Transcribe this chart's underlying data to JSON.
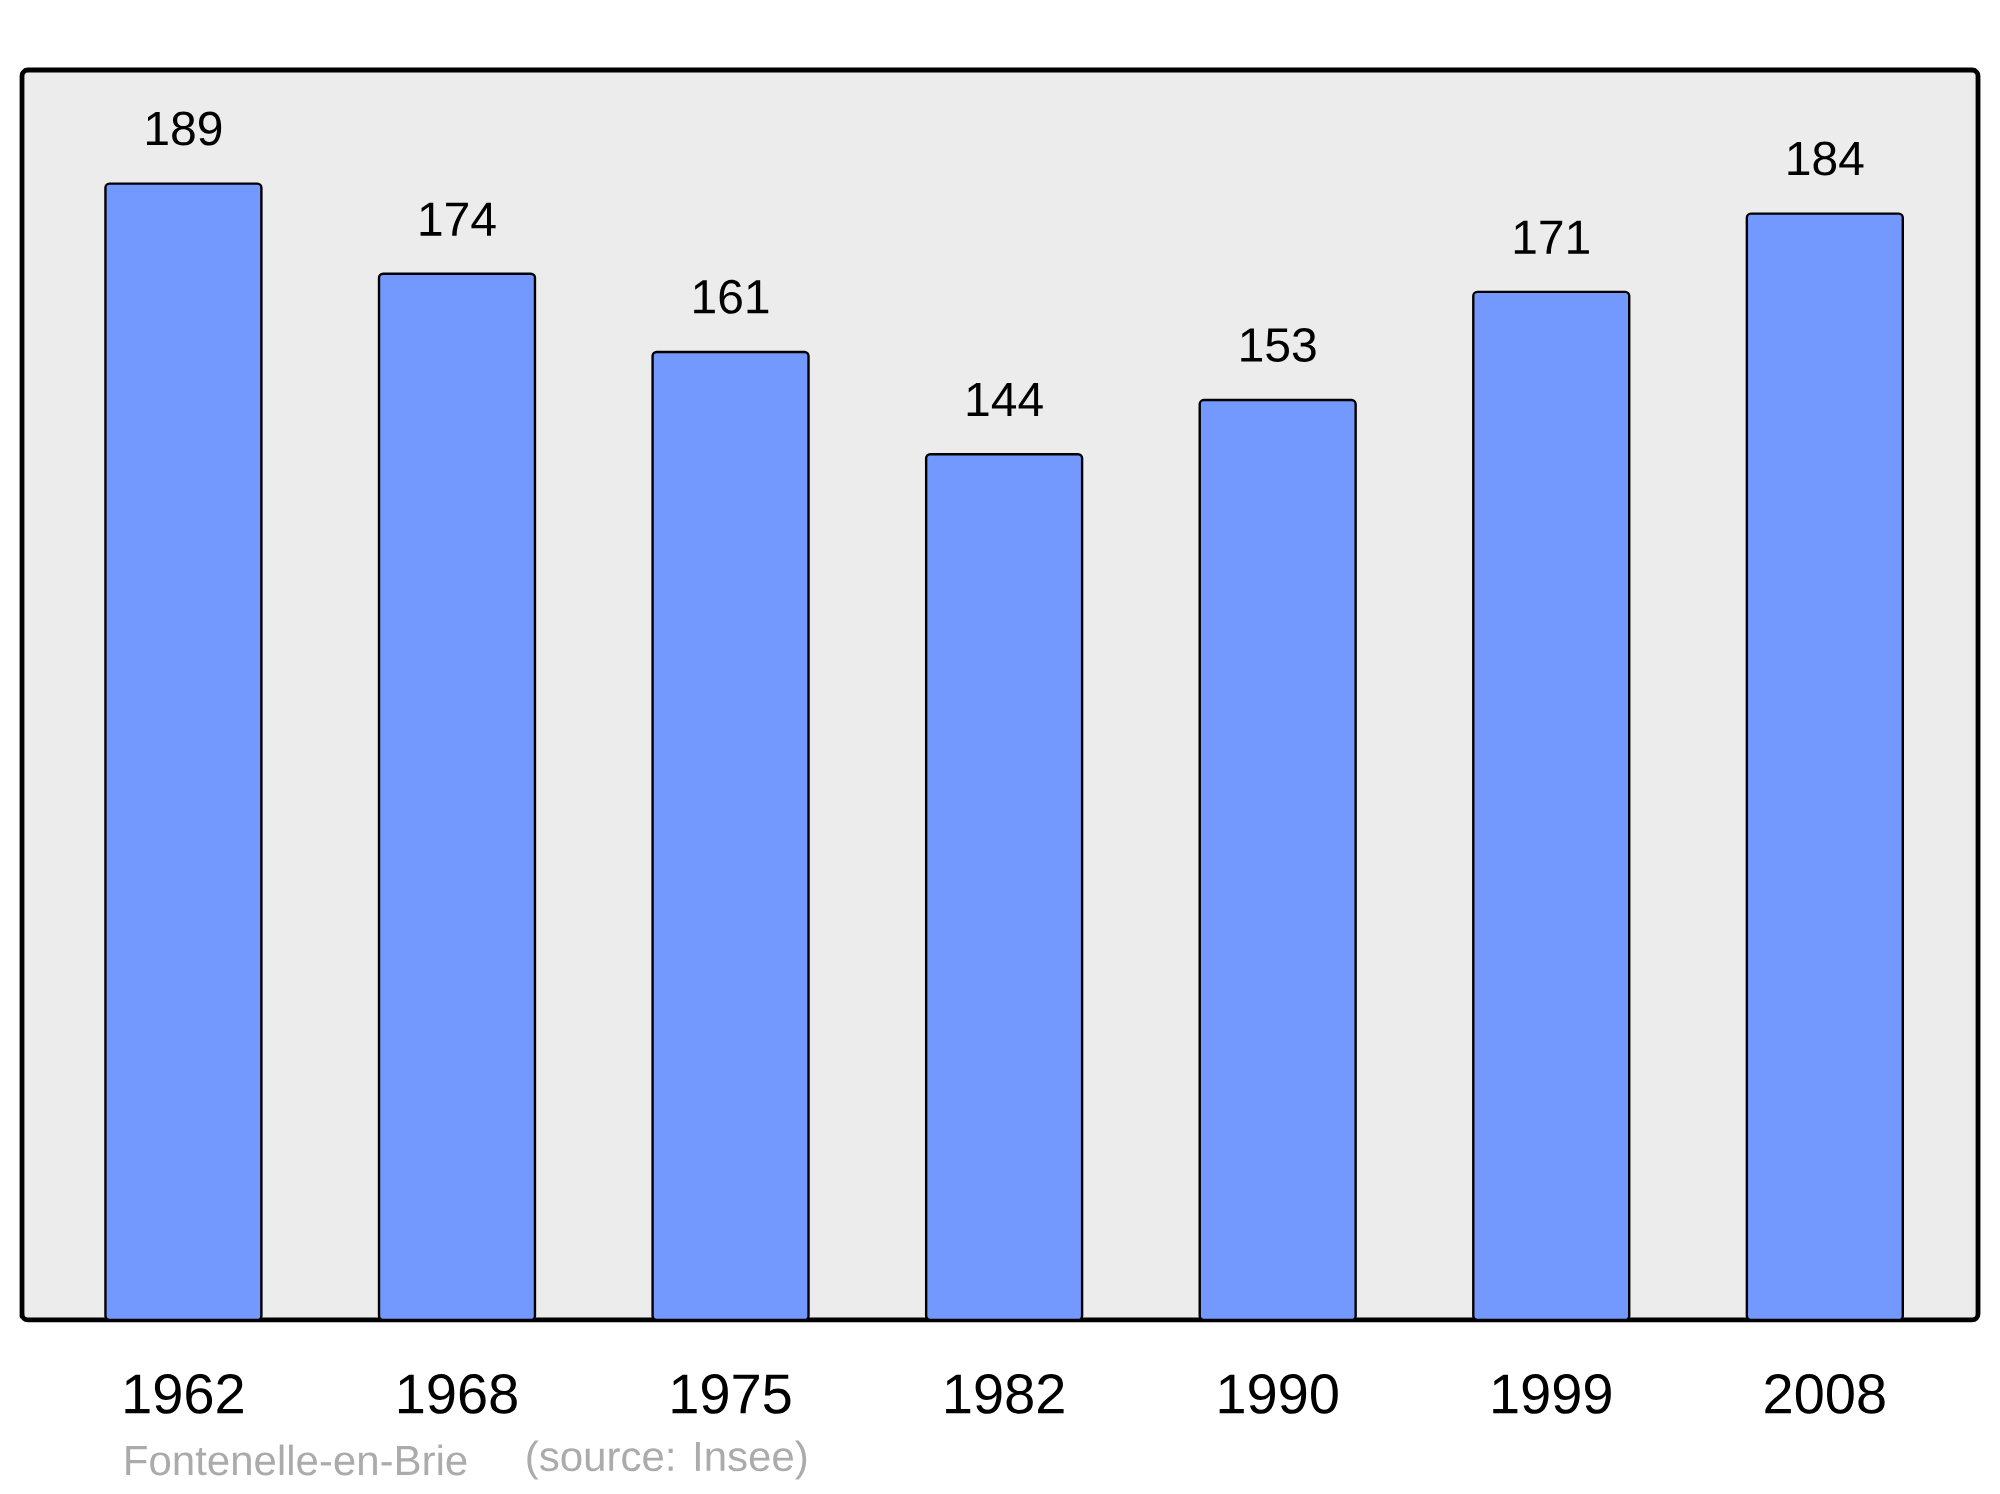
{
  "chart_data": {
    "type": "bar",
    "categories": [
      "1962",
      "1968",
      "1975",
      "1982",
      "1990",
      "1999",
      "2008"
    ],
    "values": [
      189,
      174,
      161,
      144,
      153,
      171,
      184
    ],
    "color": "#7399ff",
    "data_labels": true,
    "annotations": [
      "Fontenelle-en-Brie",
      "(source: Insee)"
    ]
  }
}
